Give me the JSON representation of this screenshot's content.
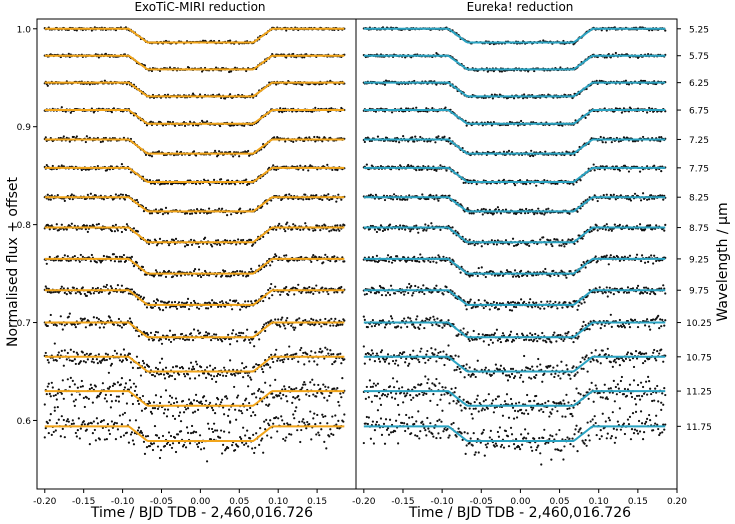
{
  "chart_data": [
    {
      "type": "line",
      "title": "ExoTiC-MIRI reduction",
      "xlabel": "Time / BJD TDB - 2,460,016.726",
      "ylabel": "Normalised flux + offset",
      "xlim": [
        -0.21,
        0.2
      ],
      "ylim": [
        0.53,
        1.01
      ],
      "xticks": [
        -0.2,
        -0.15,
        -0.1,
        -0.05,
        0.0,
        0.05,
        0.1,
        0.15
      ],
      "xtick_labels": [
        "-0.20",
        "-0.15",
        "-0.10",
        "-0.05",
        "0.00",
        "0.05",
        "0.10",
        "0.15"
      ],
      "yticks": [
        0.6,
        0.7,
        0.8,
        0.9,
        1.0
      ],
      "ytick_labels": [
        "0.6",
        "0.7",
        "0.8",
        "0.9",
        "1.0"
      ],
      "model_color": "#f2a51a",
      "data_color": "#111111",
      "transit": {
        "t1": -0.092,
        "t2": -0.068,
        "t3": 0.068,
        "t4": 0.092
      },
      "series": [
        {
          "baseline": 1.0,
          "depth": 0.014,
          "noise": 0.0007
        },
        {
          "baseline": 0.9725,
          "depth": 0.014,
          "noise": 0.0008
        },
        {
          "baseline": 0.945,
          "depth": 0.014,
          "noise": 0.0009
        },
        {
          "baseline": 0.917,
          "depth": 0.014,
          "noise": 0.001
        },
        {
          "baseline": 0.887,
          "depth": 0.0145,
          "noise": 0.0012
        },
        {
          "baseline": 0.858,
          "depth": 0.0145,
          "noise": 0.0013
        },
        {
          "baseline": 0.828,
          "depth": 0.0145,
          "noise": 0.0015
        },
        {
          "baseline": 0.797,
          "depth": 0.015,
          "noise": 0.0018
        },
        {
          "baseline": 0.765,
          "depth": 0.015,
          "noise": 0.002
        },
        {
          "baseline": 0.733,
          "depth": 0.015,
          "noise": 0.0024
        },
        {
          "baseline": 0.7,
          "depth": 0.015,
          "noise": 0.003
        },
        {
          "baseline": 0.665,
          "depth": 0.015,
          "noise": 0.0045
        },
        {
          "baseline": 0.63,
          "depth": 0.015,
          "noise": 0.0065
        },
        {
          "baseline": 0.594,
          "depth": 0.015,
          "noise": 0.0085
        }
      ]
    },
    {
      "type": "line",
      "title": "Eureka! reduction",
      "xlabel": "Time / BJD TDB - 2,460,016.726",
      "ylabel": "Wavelength / μm",
      "xlim": [
        -0.21,
        0.2
      ],
      "ylim": [
        0.53,
        1.01
      ],
      "xticks": [
        -0.2,
        -0.15,
        -0.1,
        -0.05,
        0.0,
        0.05,
        0.1,
        0.15,
        0.2
      ],
      "xtick_labels": [
        "-0.20",
        "-0.15",
        "-0.10",
        "-0.05",
        "0.00",
        "0.05",
        "0.10",
        "0.15",
        "0.20"
      ],
      "wavelength_labels": [
        "5.25",
        "5.75",
        "6.25",
        "6.75",
        "7.25",
        "7.75",
        "8.25",
        "8.75",
        "9.25",
        "9.75",
        "10.25",
        "10.75",
        "11.25",
        "11.75"
      ],
      "model_color": "#2aa3c2",
      "data_color": "#111111",
      "transit": {
        "t1": -0.092,
        "t2": -0.068,
        "t3": 0.068,
        "t4": 0.092
      },
      "series": [
        {
          "baseline": 1.0,
          "depth": 0.014,
          "noise": 0.0007
        },
        {
          "baseline": 0.9725,
          "depth": 0.014,
          "noise": 0.0008
        },
        {
          "baseline": 0.945,
          "depth": 0.014,
          "noise": 0.0009
        },
        {
          "baseline": 0.917,
          "depth": 0.014,
          "noise": 0.001
        },
        {
          "baseline": 0.887,
          "depth": 0.0145,
          "noise": 0.0012
        },
        {
          "baseline": 0.858,
          "depth": 0.0145,
          "noise": 0.0013
        },
        {
          "baseline": 0.828,
          "depth": 0.0145,
          "noise": 0.0015
        },
        {
          "baseline": 0.797,
          "depth": 0.015,
          "noise": 0.0018
        },
        {
          "baseline": 0.765,
          "depth": 0.015,
          "noise": 0.002
        },
        {
          "baseline": 0.733,
          "depth": 0.015,
          "noise": 0.0024
        },
        {
          "baseline": 0.7,
          "depth": 0.015,
          "noise": 0.003
        },
        {
          "baseline": 0.665,
          "depth": 0.015,
          "noise": 0.0045
        },
        {
          "baseline": 0.63,
          "depth": 0.015,
          "noise": 0.0065
        },
        {
          "baseline": 0.594,
          "depth": 0.015,
          "noise": 0.0085
        }
      ]
    }
  ]
}
